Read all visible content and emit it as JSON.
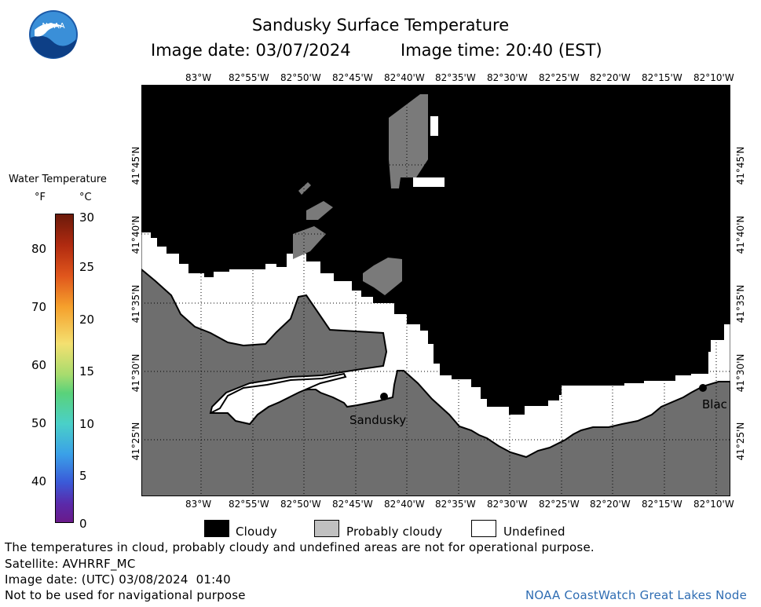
{
  "logo": {
    "text": "NOAA"
  },
  "title": "Sandusky Surface Temperature",
  "image_date_label": "Image date: 03/07/2024",
  "image_time_label": "Image time: 20:40 (EST)",
  "colorbar": {
    "title": "Water Temperature",
    "unit_f": "°F",
    "unit_c": "°C",
    "f_ticks": [
      "80",
      "70",
      "60",
      "50",
      "40"
    ],
    "c_ticks": [
      "30",
      "25",
      "20",
      "15",
      "10",
      "5",
      "0"
    ]
  },
  "map": {
    "lon_labels": [
      "83°W",
      "82°55'W",
      "82°50'W",
      "82°45'W",
      "82°40'W",
      "82°35'W",
      "82°30'W",
      "82°25'W",
      "82°20'W",
      "82°15'W",
      "82°10'W"
    ],
    "lat_labels": [
      "41°45'N",
      "41°40'N",
      "41°35'N",
      "41°30'N",
      "41°25'N"
    ],
    "places": {
      "sandusky": "Sandusky",
      "bay": "Blac"
    },
    "colors": {
      "cloudy": "#000000",
      "probably_cloudy": "#6e6e6e",
      "undefined": "#ffffff"
    }
  },
  "legend": {
    "cloudy": "Cloudy",
    "probably_cloudy": "Probably cloudy",
    "undefined": "Undefined"
  },
  "footer": {
    "disclaimer": "The temperatures in cloud, probably cloudy and undefined areas are not for operational purpose.",
    "satellite": "Satellite: AVHRRF_MC",
    "utc_date": "Image date: (UTC) 03/08/2024  01:40",
    "nav": "Not to be used for navigational purpose",
    "credit": "NOAA CoastWatch Great Lakes Node"
  }
}
